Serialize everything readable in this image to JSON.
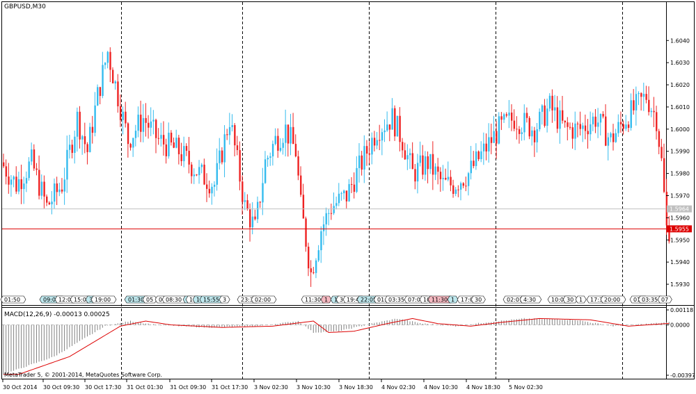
{
  "window": {
    "symbol_title": "GBPUSD,M30",
    "copyright": "MetaTrader 5, © 2001-2014, MetaQuotes Software Corp."
  },
  "colors": {
    "bull": "#33bbee",
    "bear": "#ee2222",
    "price_line": "#dd0000",
    "ask_line": "#c0c0c0",
    "grid": "#000000",
    "macd_hist": "#808080",
    "macd_signal": "#dd0000"
  },
  "price_axis": {
    "labels": [
      "1.6040",
      "1.6030",
      "1.6020",
      "1.6010",
      "1.6000",
      "1.5990",
      "1.5980",
      "1.5970",
      "1.5960",
      "1.5950",
      "1.5940",
      "1.5930"
    ],
    "range": [
      1.5925,
      1.6052
    ],
    "bid_label": "1.5955",
    "bid_value": 1.5955,
    "ask_label": "1.5964",
    "ask_value": 1.5964
  },
  "event_labels": [
    "01:50",
    "09:00",
    "12:0",
    "15:0",
    "3",
    "19:00",
    "01:30",
    "05",
    "0",
    "08:30",
    "1",
    "13",
    "1",
    "15:55",
    "3",
    "23:3",
    "02:00",
    "11:30",
    "1",
    "1",
    "3",
    "19:4",
    "22:05",
    "01:",
    "03:35",
    "07:00",
    "10",
    "11:30",
    "1",
    "17:00",
    "30",
    "02:01",
    "4:30",
    "10:00",
    "30",
    "1",
    "17:3",
    "20:00",
    "01:",
    "03:35",
    "07"
  ],
  "macd": {
    "label": "MACD(12,26,9) -0.00013 0.00025",
    "axis_labels": [
      "0.00118",
      "0.0000",
      "-0.00397"
    ],
    "range": [
      -0.00397,
      0.00118
    ]
  },
  "time_axis": {
    "labels": [
      "30 Oct 2014",
      "30 Oct 09:30",
      "30 Oct 17:30",
      "31 Oct 01:30",
      "31 Oct 09:30",
      "31 Oct 17:30",
      "3 Nov 02:30",
      "3 Nov 10:30",
      "3 Nov 18:30",
      "4 Nov 02:30",
      "4 Nov 10:30",
      "4 Nov 18:30",
      "5 Nov 02:30"
    ]
  },
  "chart_data": {
    "type": "candlestick",
    "symbol": "GBPUSD",
    "timeframe": "M30",
    "y_range": [
      1.5925,
      1.6052
    ],
    "price_keypoints": [
      [
        0,
        1.5985
      ],
      [
        6,
        1.5975
      ],
      [
        12,
        1.5985
      ],
      [
        18,
        1.5965
      ],
      [
        24,
        1.5975
      ],
      [
        30,
        1.6005
      ],
      [
        34,
        1.599
      ],
      [
        38,
        1.6015
      ],
      [
        42,
        1.6035
      ],
      [
        46,
        1.6015
      ],
      [
        50,
        1.5995
      ],
      [
        56,
        1.6005
      ],
      [
        62,
        1.5995
      ],
      [
        70,
        1.599
      ],
      [
        78,
        1.598
      ],
      [
        84,
        1.5975
      ],
      [
        90,
        1.6005
      ],
      [
        96,
        1.5965
      ],
      [
        100,
        1.5955
      ],
      [
        104,
        1.5985
      ],
      [
        108,
        1.5995
      ],
      [
        112,
        1.6
      ],
      [
        116,
        1.599
      ],
      [
        118,
        1.5965
      ],
      [
        122,
        1.5935
      ],
      [
        126,
        1.5955
      ],
      [
        130,
        1.5965
      ],
      [
        136,
        1.597
      ],
      [
        142,
        1.5985
      ],
      [
        148,
        1.6
      ],
      [
        154,
        1.6005
      ],
      [
        158,
        1.5995
      ],
      [
        162,
        1.598
      ],
      [
        168,
        1.5985
      ],
      [
        174,
        1.5975
      ],
      [
        178,
        1.5975
      ],
      [
        184,
        1.598
      ],
      [
        190,
        1.599
      ],
      [
        196,
        1.6
      ],
      [
        202,
        1.6005
      ],
      [
        210,
        1.6
      ],
      [
        216,
        1.601
      ],
      [
        222,
        1.6
      ],
      [
        228,
        1.6
      ],
      [
        234,
        1.6005
      ],
      [
        240,
        1.5995
      ],
      [
        246,
        1.6005
      ],
      [
        250,
        1.601
      ],
      [
        254,
        1.6015
      ],
      [
        258,
        1.6005
      ],
      [
        260,
        1.5985
      ],
      [
        262,
        1.5955
      ]
    ],
    "macd_keypoints": [
      [
        0,
        -0.0039
      ],
      [
        20,
        -0.0025
      ],
      [
        40,
        -0.0001
      ],
      [
        50,
        0.0003
      ],
      [
        60,
        0.0
      ],
      [
        80,
        -0.0002
      ],
      [
        100,
        -0.0001
      ],
      [
        116,
        0.0003
      ],
      [
        122,
        -0.0006
      ],
      [
        132,
        -0.0005
      ],
      [
        145,
        0.0001
      ],
      [
        155,
        0.0005
      ],
      [
        165,
        0.0001
      ],
      [
        178,
        -0.0001
      ],
      [
        190,
        0.0002
      ],
      [
        205,
        0.0005
      ],
      [
        225,
        0.0004
      ],
      [
        240,
        -0.0001
      ],
      [
        262,
        0.0002
      ]
    ],
    "separators_count": 5
  }
}
